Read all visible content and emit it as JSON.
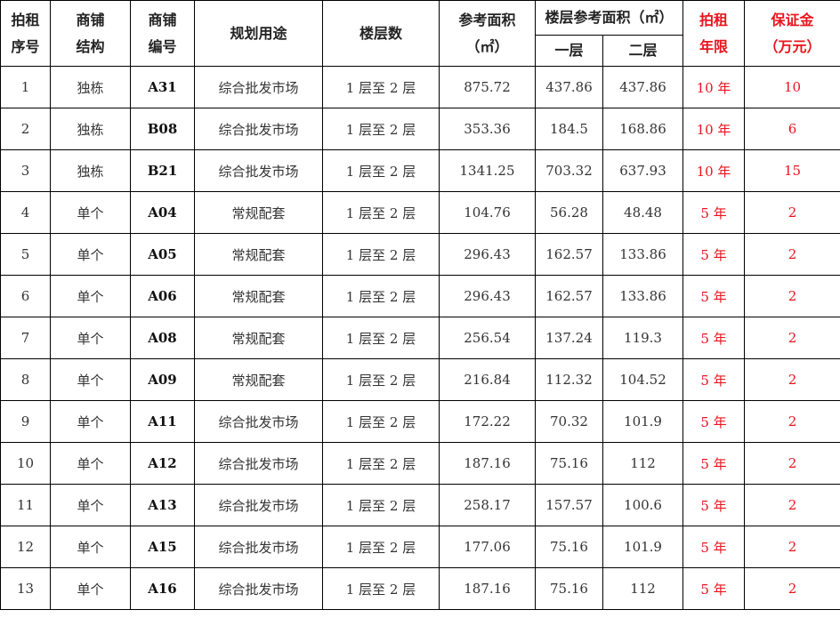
{
  "headers": {
    "seq": [
      "拍租",
      "序号"
    ],
    "structure": [
      "商铺",
      "结构"
    ],
    "code": [
      "商铺",
      "编号"
    ],
    "usage": "规划用途",
    "floors": "楼层数",
    "area": [
      "参考面积",
      "（㎡）"
    ],
    "floor_area": "楼层参考面积（㎡）",
    "floor1": "一层",
    "floor2": "二层",
    "term": [
      "拍租",
      "年限"
    ],
    "deposit": [
      "保证金",
      "（万元）"
    ]
  },
  "colors": {
    "red": "#e8141c"
  },
  "rows": [
    [
      "1",
      "独栋",
      "A31",
      "综合批发市场",
      "1 层至 2 层",
      "875.72",
      "437.86",
      "437.86",
      "10 年",
      "10"
    ],
    [
      "2",
      "独栋",
      "B08",
      "综合批发市场",
      "1 层至 2 层",
      "353.36",
      "184.5",
      "168.86",
      "10 年",
      "6"
    ],
    [
      "3",
      "独栋",
      "B21",
      "综合批发市场",
      "1 层至 2 层",
      "1341.25",
      "703.32",
      "637.93",
      "10 年",
      "15"
    ],
    [
      "4",
      "单个",
      "A04",
      "常规配套",
      "1 层至 2 层",
      "104.76",
      "56.28",
      "48.48",
      "5 年",
      "2"
    ],
    [
      "5",
      "单个",
      "A05",
      "常规配套",
      "1 层至 2 层",
      "296.43",
      "162.57",
      "133.86",
      "5 年",
      "2"
    ],
    [
      "6",
      "单个",
      "A06",
      "常规配套",
      "1 层至 2 层",
      "296.43",
      "162.57",
      "133.86",
      "5 年",
      "2"
    ],
    [
      "7",
      "单个",
      "A08",
      "常规配套",
      "1 层至 2 层",
      "256.54",
      "137.24",
      "119.3",
      "5 年",
      "2"
    ],
    [
      "8",
      "单个",
      "A09",
      "常规配套",
      "1 层至 2 层",
      "216.84",
      "112.32",
      "104.52",
      "5 年",
      "2"
    ],
    [
      "9",
      "单个",
      "A11",
      "综合批发市场",
      "1 层至 2 层",
      "172.22",
      "70.32",
      "101.9",
      "5 年",
      "2"
    ],
    [
      "10",
      "单个",
      "A12",
      "综合批发市场",
      "1 层至 2 层",
      "187.16",
      "75.16",
      "112",
      "5 年",
      "2"
    ],
    [
      "11",
      "单个",
      "A13",
      "综合批发市场",
      "1 层至 2 层",
      "258.17",
      "157.57",
      "100.6",
      "5 年",
      "2"
    ],
    [
      "12",
      "单个",
      "A15",
      "综合批发市场",
      "1 层至 2 层",
      "177.06",
      "75.16",
      "101.9",
      "5 年",
      "2"
    ],
    [
      "13",
      "单个",
      "A16",
      "综合批发市场",
      "1 层至 2 层",
      "187.16",
      "75.16",
      "112",
      "5 年",
      "2"
    ]
  ]
}
